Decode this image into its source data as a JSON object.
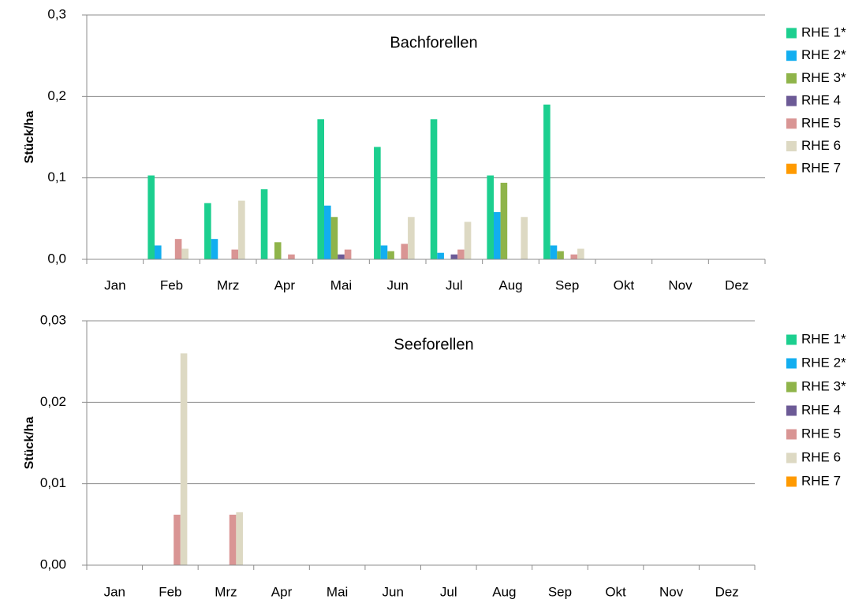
{
  "chart_data": [
    {
      "type": "bar",
      "title": "Bachforellen",
      "y_label": "Stück/ha",
      "categories": [
        "Jan",
        "Feb",
        "Mrz",
        "Apr",
        "Mai",
        "Jun",
        "Jul",
        "Aug",
        "Sep",
        "Okt",
        "Nov",
        "Dez"
      ],
      "ylim": [
        0,
        0.3
      ],
      "yticks": [
        {
          "value": 0,
          "label": "0,0"
        },
        {
          "value": 0.1,
          "label": "0,1"
        },
        {
          "value": 0.2,
          "label": "0,2"
        },
        {
          "value": 0.3,
          "label": "0,3"
        }
      ],
      "grid": true,
      "legend": "right",
      "series": [
        {
          "name": "RHE 1*",
          "color": "#1ccf8f",
          "values": [
            0,
            0.103,
            0.069,
            0.086,
            0.172,
            0.138,
            0.172,
            0.103,
            0.19,
            0,
            0,
            0
          ]
        },
        {
          "name": "RHE 2*",
          "color": "#12aef0",
          "values": [
            0,
            0.017,
            0.025,
            0,
            0.066,
            0.017,
            0.008,
            0.058,
            0.017,
            0,
            0,
            0
          ]
        },
        {
          "name": "RHE 3*",
          "color": "#8fb44a",
          "values": [
            0,
            0,
            0,
            0.021,
            0.052,
            0.01,
            0,
            0.094,
            0.01,
            0,
            0,
            0
          ]
        },
        {
          "name": "RHE 4",
          "color": "#6c5a96",
          "values": [
            0,
            0,
            0,
            0,
            0.006,
            0,
            0.006,
            0,
            0,
            0,
            0,
            0
          ]
        },
        {
          "name": "RHE 5",
          "color": "#d99594",
          "values": [
            0,
            0.025,
            0.012,
            0.006,
            0.012,
            0.019,
            0.012,
            0,
            0.006,
            0,
            0,
            0
          ]
        },
        {
          "name": "RHE 6",
          "color": "#ddd9c3",
          "values": [
            0,
            0.013,
            0.072,
            0,
            0,
            0.052,
            0.046,
            0.052,
            0.013,
            0,
            0,
            0
          ]
        },
        {
          "name": "RHE 7",
          "color": "#ff9a00",
          "values": [
            0,
            0,
            0,
            0,
            0,
            0,
            0,
            0,
            0,
            0,
            0,
            0
          ]
        }
      ]
    },
    {
      "type": "bar",
      "title": "Seeforellen",
      "y_label": "Stück/ha",
      "categories": [
        "Jan",
        "Feb",
        "Mrz",
        "Apr",
        "Mai",
        "Jun",
        "Jul",
        "Aug",
        "Sep",
        "Okt",
        "Nov",
        "Dez"
      ],
      "ylim": [
        0,
        0.03
      ],
      "yticks": [
        {
          "value": 0,
          "label": "0,00"
        },
        {
          "value": 0.01,
          "label": "0,01"
        },
        {
          "value": 0.02,
          "label": "0,02"
        },
        {
          "value": 0.03,
          "label": "0,03"
        }
      ],
      "grid": true,
      "legend": "right",
      "series": [
        {
          "name": "RHE 1*",
          "color": "#1ccf8f",
          "values": [
            0,
            0,
            0,
            0,
            0,
            0,
            0,
            0,
            0,
            0,
            0,
            0
          ]
        },
        {
          "name": "RHE 2*",
          "color": "#12aef0",
          "values": [
            0,
            0,
            0,
            0,
            0,
            0,
            0,
            0,
            0,
            0,
            0,
            0
          ]
        },
        {
          "name": "RHE 3*",
          "color": "#8fb44a",
          "values": [
            0,
            0,
            0,
            0,
            0,
            0,
            0,
            0,
            0,
            0,
            0,
            0
          ]
        },
        {
          "name": "RHE 4",
          "color": "#6c5a96",
          "values": [
            0,
            0,
            0,
            0,
            0,
            0,
            0,
            0,
            0,
            0,
            0,
            0
          ]
        },
        {
          "name": "RHE 5",
          "color": "#d99594",
          "values": [
            0,
            0.0062,
            0.0062,
            0,
            0,
            0,
            0,
            0,
            0,
            0,
            0,
            0
          ]
        },
        {
          "name": "RHE 6",
          "color": "#ddd9c3",
          "values": [
            0,
            0.026,
            0.0065,
            0,
            0,
            0,
            0,
            0,
            0,
            0,
            0,
            0
          ]
        },
        {
          "name": "RHE 7",
          "color": "#ff9a00",
          "values": [
            0,
            0,
            0,
            0,
            0,
            0,
            0,
            0,
            0,
            0,
            0,
            0
          ]
        }
      ]
    }
  ]
}
